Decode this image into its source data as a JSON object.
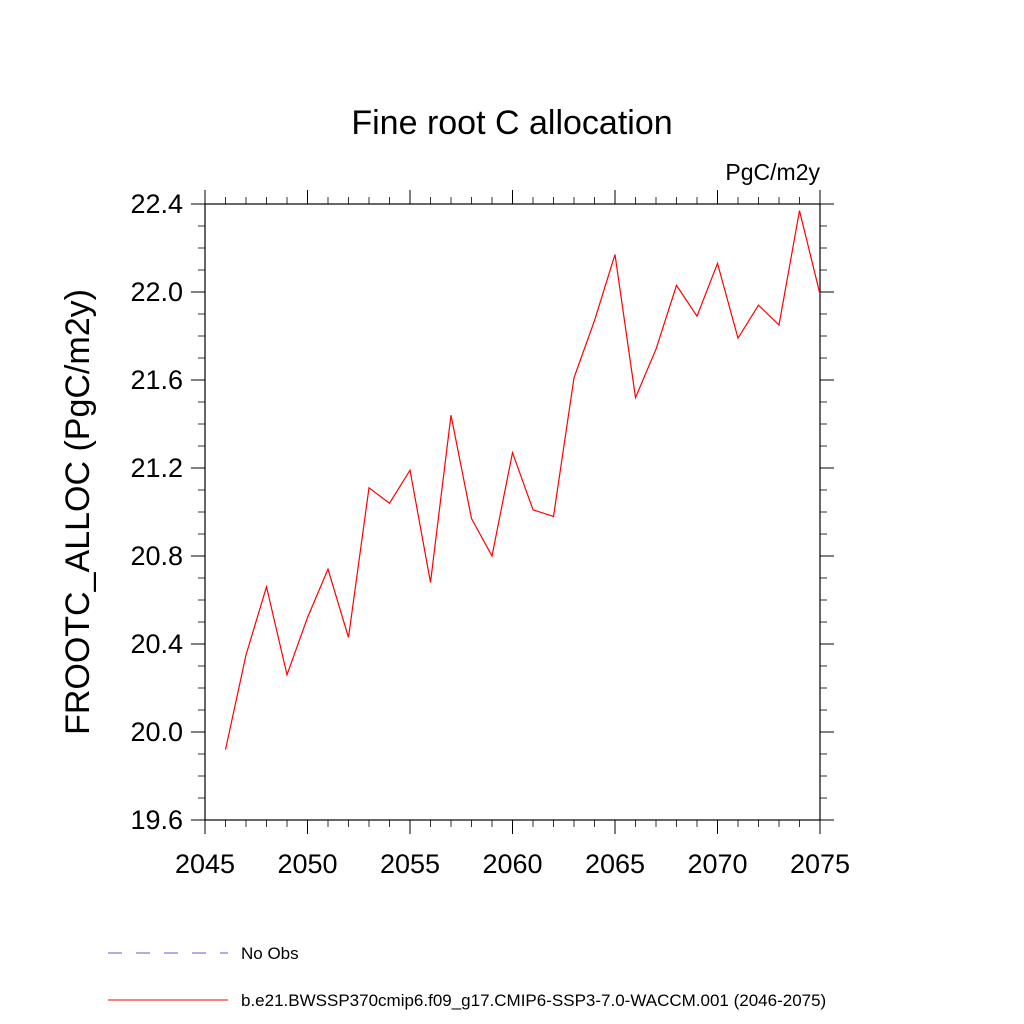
{
  "chart_data": {
    "type": "line",
    "title": "Fine root C allocation",
    "units": "PgC/m2y",
    "xlabel": "",
    "ylabel": "FROOTC_ALLOC  (PgC/m2y)",
    "xlim": [
      2045,
      2075
    ],
    "ylim": [
      19.6,
      22.4
    ],
    "x_ticks": [
      2045,
      2050,
      2055,
      2060,
      2065,
      2070,
      2075
    ],
    "y_ticks": [
      "19.6",
      "20.0",
      "20.4",
      "20.8",
      "21.2",
      "21.6",
      "22.0",
      "22.4"
    ],
    "grid": false,
    "legend_placement": "bottom",
    "series": [
      {
        "name": "b.e21.BWSSP370cmip6.f09_g17.CMIP6-SSP3-7.0-WACCM.001 (2046-2075)",
        "color": "#ff0000",
        "style": "solid",
        "x": [
          2046,
          2047,
          2048,
          2049,
          2050,
          2051,
          2052,
          2053,
          2054,
          2055,
          2056,
          2057,
          2058,
          2059,
          2060,
          2061,
          2062,
          2063,
          2064,
          2065,
          2066,
          2067,
          2068,
          2069,
          2070,
          2071,
          2072,
          2073,
          2074,
          2075
        ],
        "y": [
          19.92,
          20.35,
          20.66,
          20.26,
          20.52,
          20.74,
          20.43,
          21.11,
          21.04,
          21.19,
          20.68,
          21.44,
          20.97,
          20.8,
          21.27,
          21.01,
          20.98,
          21.61,
          21.87,
          22.17,
          21.52,
          21.74,
          22.03,
          21.89,
          22.13,
          21.79,
          21.94,
          21.85,
          22.37,
          21.99
        ]
      }
    ],
    "legend": [
      {
        "label": "No Obs",
        "color": "#6a5acd",
        "style": "dashed"
      },
      {
        "label": "b.e21.BWSSP370cmip6.f09_g17.CMIP6-SSP3-7.0-WACCM.001 (2046-2075)",
        "color": "#ff0000",
        "style": "solid"
      }
    ]
  }
}
